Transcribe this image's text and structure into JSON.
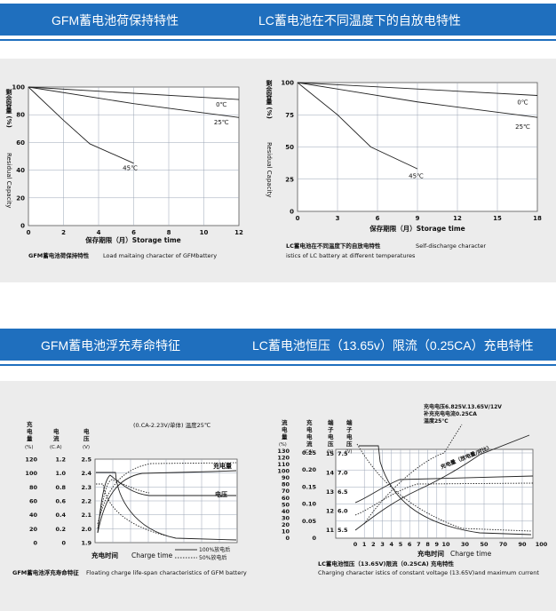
{
  "headers": {
    "top_left": "GFM蓄电池荷保持特性",
    "top_right": "LC蓄电池在不同温度下的自放电特性",
    "bottom_left": "GFM蓄电池浮充寿命特征",
    "bottom_right": "LC蓄电池恒压（13.65v）限流（0.25CA）充电特性"
  },
  "colors": {
    "header_bg": "#1f6fbe",
    "panel_bg": "#ececec",
    "plot_bg": "#ffffff"
  },
  "chart_data": [
    {
      "type": "line",
      "xlabel": "保存期限（月）Storage time",
      "ylabel_cn": "剩余容量 (%)",
      "ylabel_en": "Residual Capacity",
      "x_ticks": [
        "0",
        "2",
        "4",
        "6",
        "8",
        "10",
        "12"
      ],
      "y_ticks": [
        "0",
        "20",
        "40",
        "60",
        "80",
        "100"
      ],
      "xlim": [
        0,
        12
      ],
      "ylim": [
        0,
        100
      ],
      "grid": true,
      "series": [
        {
          "name": "0℃",
          "x": [
            0,
            12
          ],
          "y": [
            100,
            91
          ]
        },
        {
          "name": "25℃",
          "x": [
            0,
            6,
            12
          ],
          "y": [
            100,
            88,
            78
          ]
        },
        {
          "name": "45℃",
          "x": [
            0,
            2,
            3.5,
            6
          ],
          "y": [
            100,
            76,
            59,
            45
          ]
        }
      ],
      "caption_cn": "GFM蓄电池荷保持特性",
      "caption_en": "Load maitaing character of GFMbattery"
    },
    {
      "type": "line",
      "xlabel": "保存期限（月）Storage time",
      "ylabel_cn": "剩余容量 (%)",
      "ylabel_en": "Residual Capacity",
      "x_ticks": [
        "0",
        "3",
        "6",
        "9",
        "12",
        "15",
        "18"
      ],
      "y_ticks": [
        "0",
        "25",
        "50",
        "75",
        "100"
      ],
      "xlim": [
        0,
        18
      ],
      "ylim": [
        0,
        100
      ],
      "grid": true,
      "series": [
        {
          "name": "0℃",
          "x": [
            0,
            18
          ],
          "y": [
            100,
            90
          ]
        },
        {
          "name": "25℃",
          "x": [
            0,
            9,
            18
          ],
          "y": [
            100,
            85,
            73
          ]
        },
        {
          "name": "45℃",
          "x": [
            0,
            3,
            5.5,
            9
          ],
          "y": [
            100,
            75,
            50,
            33
          ]
        }
      ],
      "caption_cn": "LC蓄电池在不同温度下的自放电特性",
      "caption_en_1": "Self-discharge character",
      "caption_en_2": "istics of LC battery at different temperatures"
    },
    {
      "type": "line",
      "title": "(0.CA-2.23V/单体) 温度25℃",
      "xlabel_cn": "充电时间",
      "xlabel_en": "Charge time",
      "axis_headers": {
        "capacity": "充电量 (%)",
        "current": "电流 (C.A)",
        "voltage": "电压 (V)"
      },
      "capacity_ticks": [
        "0",
        "20",
        "40",
        "60",
        "80",
        "100",
        "120"
      ],
      "current_ticks": [
        "0",
        "0.2",
        "0.4",
        "0.6",
        "0.8",
        "1.0",
        "1.2"
      ],
      "voltage_ticks": [
        "1.9",
        "2.0",
        "2.1",
        "2.2",
        "2.3",
        "2.4",
        "2.5"
      ],
      "grid": true,
      "labels": {
        "capacity": "充电量",
        "voltage": "电压"
      },
      "legend": [
        "100%放电后",
        "50%放电后"
      ],
      "caption_cn": "GFM蓄电池浮充寿命特征",
      "caption_en": "Floating charge life-span characteristics of GFM battery"
    },
    {
      "type": "line",
      "annotation_1": "充电电压6.825V.13.65V/12V",
      "annotation_2": "补充充电电流0.25CA",
      "annotation_3": "温度25℃",
      "xlabel_cn": "充电时间",
      "xlabel_en": "Charge time",
      "axis_headers": {
        "flow": "流电量 (%)",
        "current": "充电电流 (CA)",
        "terminal6": "端子电压 (V)",
        "terminal12": "端子电压 (V)"
      },
      "flow_ticks": [
        "0",
        "10",
        "20",
        "30",
        "40",
        "50",
        "60",
        "70",
        "80",
        "90",
        "100",
        "110",
        "120",
        "130"
      ],
      "current_ticks": [
        "0",
        "0.05",
        "0.10",
        "0.15",
        "0.20",
        "0.25"
      ],
      "terminal6_ticks": [
        "5.5",
        "6.0",
        "6.5",
        "7.0",
        "7.5"
      ],
      "terminal12_ticks": [
        "11",
        "12",
        "13",
        "14",
        "15"
      ],
      "x_ticks": [
        "0",
        "1",
        "2",
        "3",
        "4",
        "5",
        "6",
        "7",
        "8",
        "9",
        "10",
        "30",
        "50",
        "70",
        "90",
        "100"
      ],
      "grid": true,
      "labels": {
        "charge_amount": "充电量（放电量/对比）"
      },
      "caption_cn": "LC蓄电池恒压（13.65V)限流（0.25CA) 充电特性",
      "caption_en": "Charging character istics of constant voltage (13.65V)and maximum current"
    }
  ]
}
